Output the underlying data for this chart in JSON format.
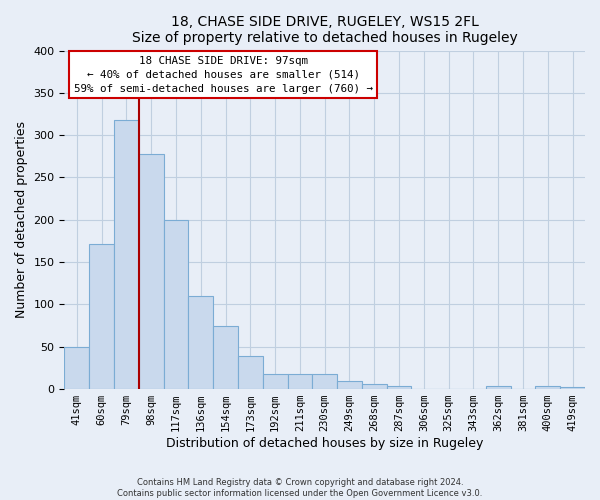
{
  "title": "18, CHASE SIDE DRIVE, RUGELEY, WS15 2FL",
  "subtitle": "Size of property relative to detached houses in Rugeley",
  "xlabel": "Distribution of detached houses by size in Rugeley",
  "ylabel": "Number of detached properties",
  "bar_labels": [
    "41sqm",
    "60sqm",
    "79sqm",
    "98sqm",
    "117sqm",
    "136sqm",
    "154sqm",
    "173sqm",
    "192sqm",
    "211sqm",
    "230sqm",
    "249sqm",
    "268sqm",
    "287sqm",
    "306sqm",
    "325sqm",
    "343sqm",
    "362sqm",
    "381sqm",
    "400sqm",
    "419sqm"
  ],
  "bar_values": [
    50,
    172,
    318,
    278,
    200,
    110,
    75,
    39,
    18,
    18,
    18,
    10,
    6,
    4,
    0,
    0,
    0,
    4,
    0,
    4,
    3
  ],
  "bar_color": "#c9d9ed",
  "bar_edge_color": "#7bacd4",
  "ylim": [
    0,
    400
  ],
  "yticks": [
    0,
    50,
    100,
    150,
    200,
    250,
    300,
    350,
    400
  ],
  "property_label": "18 CHASE SIDE DRIVE: 97sqm",
  "annotation_line1": "← 40% of detached houses are smaller (514)",
  "annotation_line2": "59% of semi-detached houses are larger (760) →",
  "vline_color": "#aa0000",
  "footer_line1": "Contains HM Land Registry data © Crown copyright and database right 2024.",
  "footer_line2": "Contains public sector information licensed under the Open Government Licence v3.0.",
  "background_color": "#e8eef7",
  "plot_bg_color": "#e8eef7",
  "grid_color": "#c0cfe0"
}
